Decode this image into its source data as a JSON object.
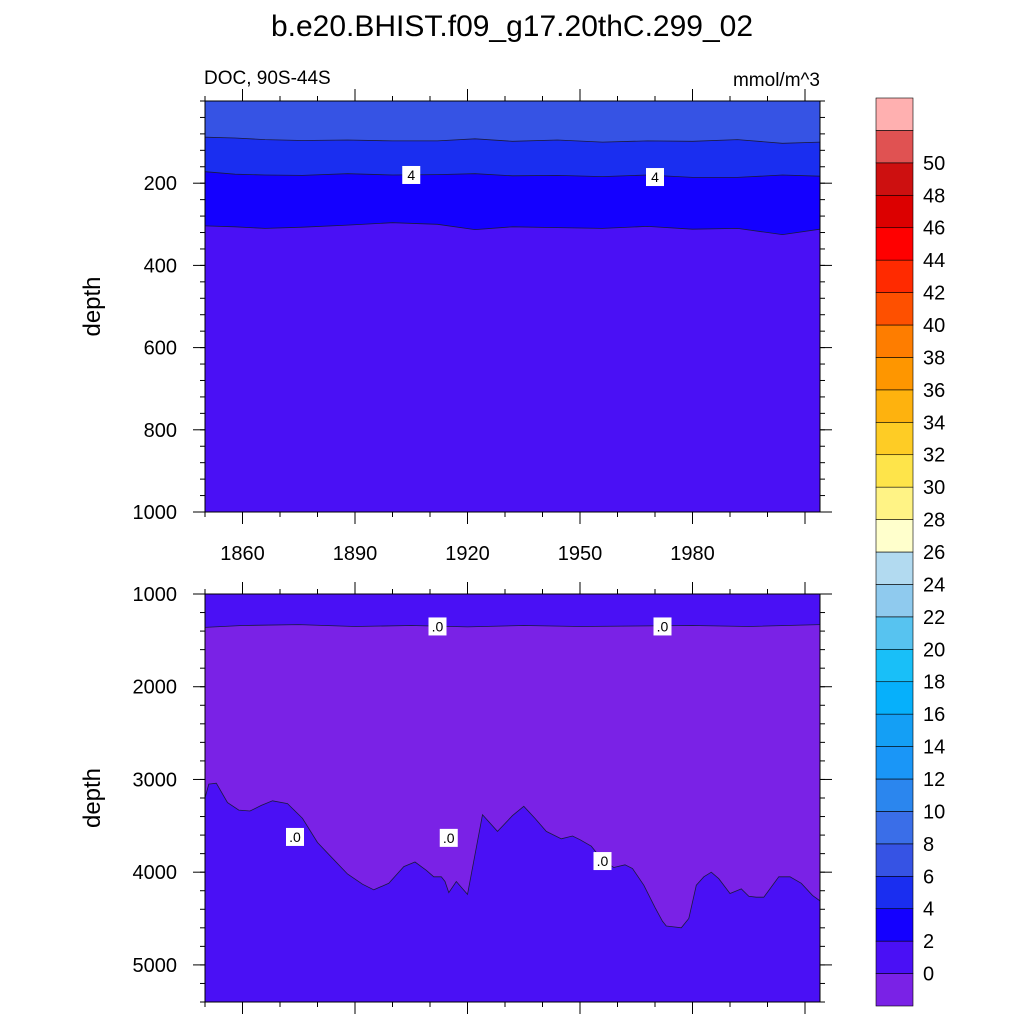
{
  "chart_data": {
    "type": "contour",
    "title": "b.e20.BHIST.f09_g17.20thC.299_02",
    "left_label": "DOC, 90S-44S",
    "units": "mmol/m^3",
    "colorbar": {
      "levels": [
        0,
        2,
        4,
        6,
        8,
        10,
        12,
        14,
        16,
        18,
        20,
        22,
        24,
        26,
        28,
        30,
        32,
        34,
        36,
        38,
        40,
        42,
        44,
        46,
        48,
        50
      ],
      "colors": [
        "#7a22e6",
        "#4a10f5",
        "#1400ff",
        "#1a2ef0",
        "#3653e4",
        "#3a6ee8",
        "#2b86ee",
        "#1a96f7",
        "#149ff5",
        "#06b0fb",
        "#19bff8",
        "#57c3f0",
        "#8fcaee",
        "#b2daf0",
        "#ffffcc",
        "#fff385",
        "#fee44a",
        "#fecc25",
        "#feb20e",
        "#fe9600",
        "#fe7d00",
        "#fe5000",
        "#ff2a00",
        "#ff0000",
        "#dc0000",
        "#cd1010",
        "#e05252",
        "#ffb0b0"
      ],
      "tick_labels": [
        "0",
        "2",
        "4",
        "6",
        "8",
        "10",
        "12",
        "14",
        "16",
        "18",
        "20",
        "22",
        "24",
        "26",
        "28",
        "30",
        "32",
        "34",
        "36",
        "38",
        "40",
        "42",
        "44",
        "46",
        "48",
        "50"
      ]
    },
    "panels": [
      {
        "name": "upper",
        "ylabel": "depth",
        "xlim": [
          1850,
          2014
        ],
        "ylim": [
          0,
          1000
        ],
        "y_ticks": [
          "200",
          "400",
          "600",
          "800",
          "1000"
        ],
        "y_tick_values": [
          200,
          400,
          600,
          800,
          1000
        ],
        "x_tick_labels": [
          "1860",
          "1890",
          "1920",
          "1950",
          "1980"
        ],
        "x_tick_values": [
          1860,
          1890,
          1920,
          1950,
          1980
        ],
        "contour_labels": [
          {
            "text": "4",
            "x": 1905,
            "y": 180
          },
          {
            "text": "4",
            "x": 1970,
            "y": 185
          }
        ],
        "bands": [
          {
            "range": "6-8",
            "top": 0,
            "bottom": 90
          },
          {
            "range": "4-6",
            "top": 90,
            "bottom": 180
          },
          {
            "range": "2-4",
            "top": 180,
            "bottom": 310
          },
          {
            "range": "0-2",
            "top": 310,
            "bottom": 1000
          }
        ],
        "contours": [
          {
            "level": 6,
            "years": [
              1850,
              1858,
              1866,
              1876,
              1888,
              1900,
              1912,
              1922,
              1932,
              1944,
              1956,
              1968,
              1980,
              1992,
              2004,
              2014
            ],
            "depth": [
              88,
              90,
              94,
              96,
              95,
              97,
              97,
              92,
              98,
              95,
              100,
              97,
              98,
              94,
              103,
              100
            ]
          },
          {
            "level": 4,
            "years": [
              1850,
              1858,
              1866,
              1876,
              1888,
              1900,
              1912,
              1922,
              1932,
              1944,
              1956,
              1968,
              1980,
              1992,
              2004,
              2014
            ],
            "depth": [
              172,
              178,
              180,
              181,
              177,
              180,
              179,
              177,
              182,
              181,
              184,
              180,
              186,
              186,
              180,
              183
            ]
          },
          {
            "level": 2,
            "years": [
              1850,
              1858,
              1866,
              1876,
              1888,
              1900,
              1912,
              1922,
              1932,
              1944,
              1956,
              1968,
              1980,
              1992,
              2004,
              2014
            ],
            "depth": [
              304,
              306,
              310,
              307,
              302,
              296,
              300,
              313,
              306,
              308,
              310,
              305,
              312,
              310,
              325,
              312
            ]
          }
        ]
      },
      {
        "name": "lower",
        "ylabel": "depth",
        "xlim": [
          1850,
          2014
        ],
        "ylim": [
          1000,
          5400
        ],
        "y_ticks": [
          "1000",
          "2000",
          "3000",
          "4000",
          "5000"
        ],
        "y_tick_values": [
          1000,
          2000,
          3000,
          4000,
          5000
        ],
        "contour_labels": [
          {
            "text": ".0",
            "x": 1912,
            "y": 1350
          },
          {
            "text": ".0",
            "x": 1972,
            "y": 1350
          },
          {
            "text": ".0",
            "x": 1874,
            "y": 3620
          },
          {
            "text": ".0",
            "x": 1915,
            "y": 3630
          },
          {
            "text": ".0",
            "x": 1956,
            "y": 3880
          }
        ],
        "bands": [
          {
            "range": "0-2",
            "top": 1000,
            "bottom": 1350
          },
          {
            "range": "<0",
            "top": 1350,
            "bottom": 3000
          },
          {
            "range": "0-2",
            "top": 3000,
            "bottom": 5400
          }
        ],
        "contours": [
          {
            "level": 0,
            "years": [
              1850,
              1860,
              1875,
              1890,
              1905,
              1920,
              1935,
              1950,
              1965,
              1980,
              1995,
              2014
            ],
            "depth": [
              1360,
              1340,
              1330,
              1350,
              1340,
              1355,
              1340,
              1350,
              1345,
              1340,
              1350,
              1330
            ]
          },
          {
            "level": 0,
            "years": [
              1850,
              1851,
              1853,
              1856,
              1859,
              1862,
              1865,
              1868,
              1872,
              1876,
              1880,
              1884,
              1888,
              1892,
              1895,
              1899,
              1903,
              1906,
              1909,
              1911,
              1913,
              1914,
              1915,
              1917,
              1920,
              1924,
              1928,
              1932,
              1935,
              1938,
              1941,
              1945,
              1948,
              1950,
              1953,
              1956,
              1959,
              1962,
              1964,
              1967,
              1970,
              1972,
              1973,
              1975,
              1977,
              1979,
              1981,
              1983,
              1985,
              1987,
              1990,
              1993,
              1995,
              1997,
              1999,
              2001,
              2003,
              2006,
              2009,
              2012,
              2014
            ],
            "depth": [
              3200,
              3050,
              3040,
              3250,
              3330,
              3340,
              3280,
              3230,
              3260,
              3420,
              3680,
              3850,
              4020,
              4130,
              4190,
              4120,
              3940,
              3890,
              3980,
              4050,
              4050,
              4100,
              4220,
              4100,
              4240,
              3380,
              3560,
              3390,
              3290,
              3420,
              3560,
              3640,
              3610,
              3650,
              3720,
              3870,
              3950,
              3920,
              3960,
              4140,
              4380,
              4530,
              4580,
              4590,
              4600,
              4500,
              4140,
              4050,
              4000,
              4070,
              4230,
              4180,
              4260,
              4270,
              4270,
              4160,
              4050,
              4050,
              4120,
              4250,
              4310
            ]
          }
        ]
      }
    ]
  }
}
